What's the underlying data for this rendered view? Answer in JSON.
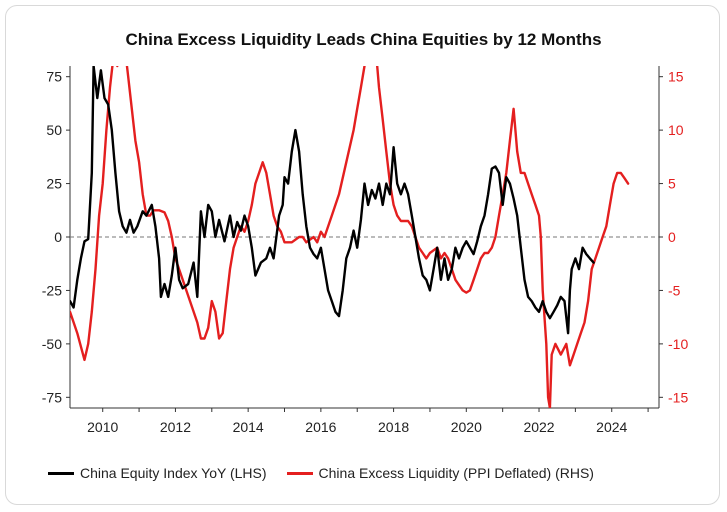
{
  "chart_data": {
    "type": "line",
    "title": "China Excess Liquidity Leads China Equities by 12 Months",
    "x_ticks": [
      "2010",
      "2012",
      "2014",
      "2016",
      "2018",
      "2020",
      "2022",
      "2024"
    ],
    "xlim": [
      2009.1,
      2025.3
    ],
    "y_left": {
      "ticks": [
        "75",
        "50",
        "25",
        "0",
        "-25",
        "-50",
        "-75"
      ],
      "ylim": [
        -80,
        80
      ]
    },
    "y_right": {
      "ticks": [
        "15",
        "10",
        "5",
        "0",
        "-5",
        "-10",
        "-15"
      ],
      "ylim": [
        -16,
        16
      ],
      "color": "#e41f1f"
    },
    "zero_line": "dashed",
    "legend_position": "bottom",
    "series": [
      {
        "name": "China Equity Index YoY (LHS)",
        "axis": "left",
        "color": "#000000",
        "points": [
          [
            2009.1,
            -30
          ],
          [
            2009.2,
            -33
          ],
          [
            2009.3,
            -20
          ],
          [
            2009.4,
            -10
          ],
          [
            2009.5,
            -2
          ],
          [
            2009.6,
            -1
          ],
          [
            2009.7,
            30
          ],
          [
            2009.75,
            80
          ],
          [
            2009.85,
            65
          ],
          [
            2009.95,
            78
          ],
          [
            2010.05,
            65
          ],
          [
            2010.15,
            62
          ],
          [
            2010.25,
            50
          ],
          [
            2010.35,
            30
          ],
          [
            2010.45,
            12
          ],
          [
            2010.55,
            5
          ],
          [
            2010.65,
            2
          ],
          [
            2010.75,
            8
          ],
          [
            2010.85,
            2
          ],
          [
            2010.95,
            5
          ],
          [
            2011.1,
            12
          ],
          [
            2011.2,
            10
          ],
          [
            2011.35,
            15
          ],
          [
            2011.45,
            5
          ],
          [
            2011.55,
            -10
          ],
          [
            2011.6,
            -28
          ],
          [
            2011.7,
            -22
          ],
          [
            2011.8,
            -28
          ],
          [
            2011.9,
            -18
          ],
          [
            2012.0,
            -5
          ],
          [
            2012.1,
            -20
          ],
          [
            2012.2,
            -24
          ],
          [
            2012.35,
            -22
          ],
          [
            2012.5,
            -12
          ],
          [
            2012.6,
            -28
          ],
          [
            2012.7,
            12
          ],
          [
            2012.8,
            0
          ],
          [
            2012.9,
            15
          ],
          [
            2013.0,
            12
          ],
          [
            2013.1,
            0
          ],
          [
            2013.2,
            8
          ],
          [
            2013.35,
            -2
          ],
          [
            2013.5,
            10
          ],
          [
            2013.6,
            0
          ],
          [
            2013.7,
            7
          ],
          [
            2013.8,
            3
          ],
          [
            2013.9,
            10
          ],
          [
            2014.0,
            5
          ],
          [
            2014.1,
            -5
          ],
          [
            2014.2,
            -18
          ],
          [
            2014.35,
            -12
          ],
          [
            2014.5,
            -10
          ],
          [
            2014.6,
            -5
          ],
          [
            2014.7,
            -10
          ],
          [
            2014.85,
            10
          ],
          [
            2014.95,
            15
          ],
          [
            2015.0,
            28
          ],
          [
            2015.1,
            25
          ],
          [
            2015.2,
            40
          ],
          [
            2015.3,
            50
          ],
          [
            2015.4,
            40
          ],
          [
            2015.5,
            20
          ],
          [
            2015.6,
            5
          ],
          [
            2015.7,
            -5
          ],
          [
            2015.8,
            -8
          ],
          [
            2015.9,
            -10
          ],
          [
            2016.0,
            -5
          ],
          [
            2016.1,
            -15
          ],
          [
            2016.2,
            -25
          ],
          [
            2016.3,
            -30
          ],
          [
            2016.4,
            -35
          ],
          [
            2016.5,
            -37
          ],
          [
            2016.6,
            -25
          ],
          [
            2016.7,
            -10
          ],
          [
            2016.8,
            -5
          ],
          [
            2016.9,
            3
          ],
          [
            2017.0,
            -5
          ],
          [
            2017.1,
            8
          ],
          [
            2017.2,
            25
          ],
          [
            2017.3,
            15
          ],
          [
            2017.4,
            22
          ],
          [
            2017.5,
            18
          ],
          [
            2017.6,
            25
          ],
          [
            2017.7,
            15
          ],
          [
            2017.8,
            25
          ],
          [
            2017.9,
            20
          ],
          [
            2018.0,
            42
          ],
          [
            2018.1,
            25
          ],
          [
            2018.2,
            20
          ],
          [
            2018.3,
            25
          ],
          [
            2018.4,
            20
          ],
          [
            2018.5,
            10
          ],
          [
            2018.6,
            0
          ],
          [
            2018.7,
            -10
          ],
          [
            2018.8,
            -18
          ],
          [
            2018.9,
            -20
          ],
          [
            2019.0,
            -25
          ],
          [
            2019.1,
            -15
          ],
          [
            2019.2,
            -5
          ],
          [
            2019.3,
            -20
          ],
          [
            2019.4,
            -10
          ],
          [
            2019.5,
            -20
          ],
          [
            2019.6,
            -15
          ],
          [
            2019.7,
            -5
          ],
          [
            2019.8,
            -10
          ],
          [
            2019.9,
            -5
          ],
          [
            2020.0,
            -2
          ],
          [
            2020.1,
            -5
          ],
          [
            2020.2,
            -8
          ],
          [
            2020.3,
            -2
          ],
          [
            2020.4,
            5
          ],
          [
            2020.5,
            10
          ],
          [
            2020.6,
            20
          ],
          [
            2020.7,
            32
          ],
          [
            2020.8,
            33
          ],
          [
            2020.9,
            30
          ],
          [
            2021.0,
            15
          ],
          [
            2021.1,
            28
          ],
          [
            2021.2,
            25
          ],
          [
            2021.3,
            18
          ],
          [
            2021.4,
            10
          ],
          [
            2021.5,
            -5
          ],
          [
            2021.6,
            -20
          ],
          [
            2021.7,
            -28
          ],
          [
            2021.8,
            -30
          ],
          [
            2021.9,
            -33
          ],
          [
            2022.0,
            -35
          ],
          [
            2022.1,
            -30
          ],
          [
            2022.2,
            -35
          ],
          [
            2022.3,
            -38
          ],
          [
            2022.4,
            -35
          ],
          [
            2022.5,
            -32
          ],
          [
            2022.6,
            -28
          ],
          [
            2022.7,
            -30
          ],
          [
            2022.8,
            -45
          ],
          [
            2022.85,
            -25
          ],
          [
            2022.9,
            -15
          ],
          [
            2023.0,
            -10
          ],
          [
            2023.1,
            -15
          ],
          [
            2023.2,
            -5
          ],
          [
            2023.3,
            -8
          ],
          [
            2023.4,
            -10
          ],
          [
            2023.5,
            -12
          ]
        ]
      },
      {
        "name": "China Excess Liquidity (PPI Deflated) (RHS)",
        "axis": "right",
        "color": "#e41f1f",
        "points": [
          [
            2009.1,
            -7
          ],
          [
            2009.3,
            -9
          ],
          [
            2009.5,
            -11.5
          ],
          [
            2009.6,
            -10
          ],
          [
            2009.7,
            -7
          ],
          [
            2009.8,
            -3
          ],
          [
            2009.9,
            2
          ],
          [
            2010.0,
            5
          ],
          [
            2010.1,
            10
          ],
          [
            2010.2,
            14
          ],
          [
            2010.3,
            17
          ],
          [
            2010.4,
            16
          ],
          [
            2010.5,
            20
          ],
          [
            2010.6,
            18
          ],
          [
            2010.7,
            15
          ],
          [
            2010.8,
            12
          ],
          [
            2010.9,
            9
          ],
          [
            2011.0,
            7
          ],
          [
            2011.1,
            4
          ],
          [
            2011.2,
            2
          ],
          [
            2011.3,
            2
          ],
          [
            2011.4,
            2.5
          ],
          [
            2011.55,
            2.5
          ],
          [
            2011.7,
            2.3
          ],
          [
            2011.8,
            1.5
          ],
          [
            2011.9,
            0
          ],
          [
            2012.0,
            -2
          ],
          [
            2012.2,
            -4
          ],
          [
            2012.4,
            -6
          ],
          [
            2012.6,
            -8
          ],
          [
            2012.7,
            -9.5
          ],
          [
            2012.8,
            -9.5
          ],
          [
            2012.9,
            -8.5
          ],
          [
            2013.0,
            -6
          ],
          [
            2013.1,
            -7
          ],
          [
            2013.2,
            -9.5
          ],
          [
            2013.3,
            -9
          ],
          [
            2013.4,
            -6
          ],
          [
            2013.5,
            -3
          ],
          [
            2013.6,
            -1
          ],
          [
            2013.7,
            0
          ],
          [
            2013.8,
            1
          ],
          [
            2013.9,
            0.5
          ],
          [
            2014.0,
            1.5
          ],
          [
            2014.1,
            3
          ],
          [
            2014.2,
            5
          ],
          [
            2014.3,
            6
          ],
          [
            2014.4,
            7
          ],
          [
            2014.5,
            6
          ],
          [
            2014.6,
            4
          ],
          [
            2014.7,
            2
          ],
          [
            2014.8,
            1
          ],
          [
            2014.9,
            0.5
          ],
          [
            2015.0,
            -0.5
          ],
          [
            2015.2,
            -0.5
          ],
          [
            2015.4,
            0
          ],
          [
            2015.5,
            0
          ],
          [
            2015.6,
            -0.5
          ],
          [
            2015.8,
            0
          ],
          [
            2015.9,
            -0.5
          ],
          [
            2016.0,
            0.5
          ],
          [
            2016.1,
            0
          ],
          [
            2016.3,
            2
          ],
          [
            2016.5,
            4
          ],
          [
            2016.7,
            7
          ],
          [
            2016.9,
            10
          ],
          [
            2017.0,
            12
          ],
          [
            2017.1,
            14
          ],
          [
            2017.2,
            16
          ],
          [
            2017.3,
            18
          ],
          [
            2017.4,
            17
          ],
          [
            2017.5,
            18
          ],
          [
            2017.6,
            14
          ],
          [
            2017.7,
            11
          ],
          [
            2017.8,
            8
          ],
          [
            2017.9,
            5
          ],
          [
            2018.0,
            3
          ],
          [
            2018.1,
            2
          ],
          [
            2018.2,
            1.5
          ],
          [
            2018.4,
            1.5
          ],
          [
            2018.5,
            1
          ],
          [
            2018.6,
            0
          ],
          [
            2018.7,
            -1
          ],
          [
            2018.8,
            -1.5
          ],
          [
            2018.9,
            -2
          ],
          [
            2019.0,
            -1.5
          ],
          [
            2019.2,
            -1
          ],
          [
            2019.3,
            -2
          ],
          [
            2019.4,
            -1.5
          ],
          [
            2019.5,
            -2
          ],
          [
            2019.6,
            -3
          ],
          [
            2019.7,
            -4
          ],
          [
            2019.8,
            -4.5
          ],
          [
            2019.9,
            -5
          ],
          [
            2020.0,
            -5.2
          ],
          [
            2020.1,
            -5
          ],
          [
            2020.2,
            -4
          ],
          [
            2020.3,
            -3
          ],
          [
            2020.4,
            -2
          ],
          [
            2020.5,
            -1.5
          ],
          [
            2020.6,
            -1.5
          ],
          [
            2020.7,
            -1
          ],
          [
            2020.8,
            0
          ],
          [
            2020.9,
            2
          ],
          [
            2021.0,
            4
          ],
          [
            2021.1,
            6
          ],
          [
            2021.2,
            9
          ],
          [
            2021.3,
            12
          ],
          [
            2021.35,
            10
          ],
          [
            2021.4,
            8
          ],
          [
            2021.5,
            6
          ],
          [
            2021.6,
            6
          ],
          [
            2021.7,
            5
          ],
          [
            2021.8,
            4
          ],
          [
            2021.9,
            3
          ],
          [
            2022.0,
            2
          ],
          [
            2022.05,
            0
          ],
          [
            2022.1,
            -5
          ],
          [
            2022.2,
            -10
          ],
          [
            2022.25,
            -15
          ],
          [
            2022.3,
            -16
          ],
          [
            2022.35,
            -11
          ],
          [
            2022.45,
            -10
          ],
          [
            2022.6,
            -11
          ],
          [
            2022.75,
            -10
          ],
          [
            2022.85,
            -12
          ],
          [
            2022.95,
            -11
          ],
          [
            2023.05,
            -10
          ],
          [
            2023.15,
            -9
          ],
          [
            2023.25,
            -8
          ],
          [
            2023.35,
            -6
          ],
          [
            2023.45,
            -3
          ],
          [
            2023.55,
            -2
          ],
          [
            2023.65,
            -1
          ],
          [
            2023.75,
            0
          ],
          [
            2023.85,
            1
          ],
          [
            2023.95,
            3
          ],
          [
            2024.05,
            5
          ],
          [
            2024.15,
            6
          ],
          [
            2024.25,
            6
          ],
          [
            2024.35,
            5.5
          ],
          [
            2024.45,
            5
          ]
        ]
      }
    ]
  },
  "legend": {
    "items": [
      {
        "label": "China Equity Index YoY (LHS)",
        "color": "#000000"
      },
      {
        "label": "China Excess Liquidity (PPI Deflated) (RHS)",
        "color": "#e41f1f"
      }
    ]
  }
}
